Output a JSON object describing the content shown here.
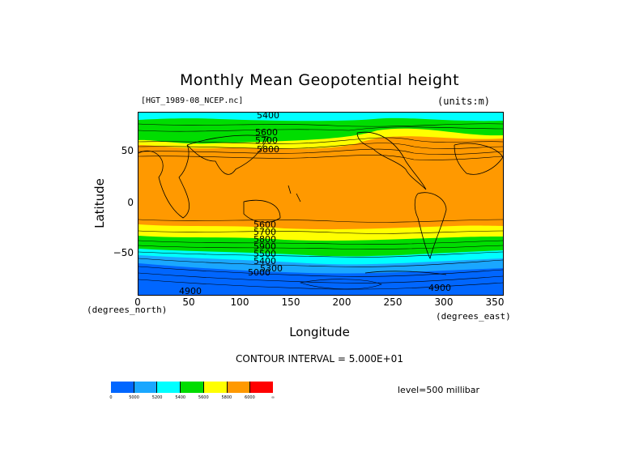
{
  "title": "Monthly Mean Geopotential height",
  "dataset": "[HGT_1989-08_NCEP.nc]",
  "units": "(units:m)",
  "y_axis": {
    "label": "Latitude",
    "unit": "(degrees_north)",
    "ticks": [
      "50",
      "0",
      "−50"
    ]
  },
  "x_axis": {
    "label": "Longitude",
    "unit": "(degrees_east)",
    "ticks": [
      "0",
      "50",
      "100",
      "150",
      "200",
      "250",
      "300",
      "350"
    ]
  },
  "contour_interval": "CONTOUR INTERVAL = 5.000E+01",
  "level": "level=500 millibar",
  "contour_labels": [
    "5400",
    "5600",
    "5700",
    "5800",
    "5600",
    "5700",
    "5800",
    "5900",
    "5500",
    "5400",
    "5300",
    "5000",
    "4900",
    "4900"
  ],
  "colorbar": {
    "colors": [
      "#0066ff",
      "#1aa7ff",
      "#00ffff",
      "#00dd00",
      "#ffff00",
      "#ff9900",
      "#ff0000"
    ],
    "labels": [
      "0",
      "5000",
      "5200",
      "5400",
      "5600",
      "5800",
      "6000",
      "∞"
    ]
  },
  "map_colors": {
    "deep_blue": "#0066ff",
    "mid_blue": "#1aa7ff",
    "cyan": "#00ffff",
    "green": "#00dd00",
    "yellow": "#ffff00",
    "orange": "#ff9900"
  }
}
